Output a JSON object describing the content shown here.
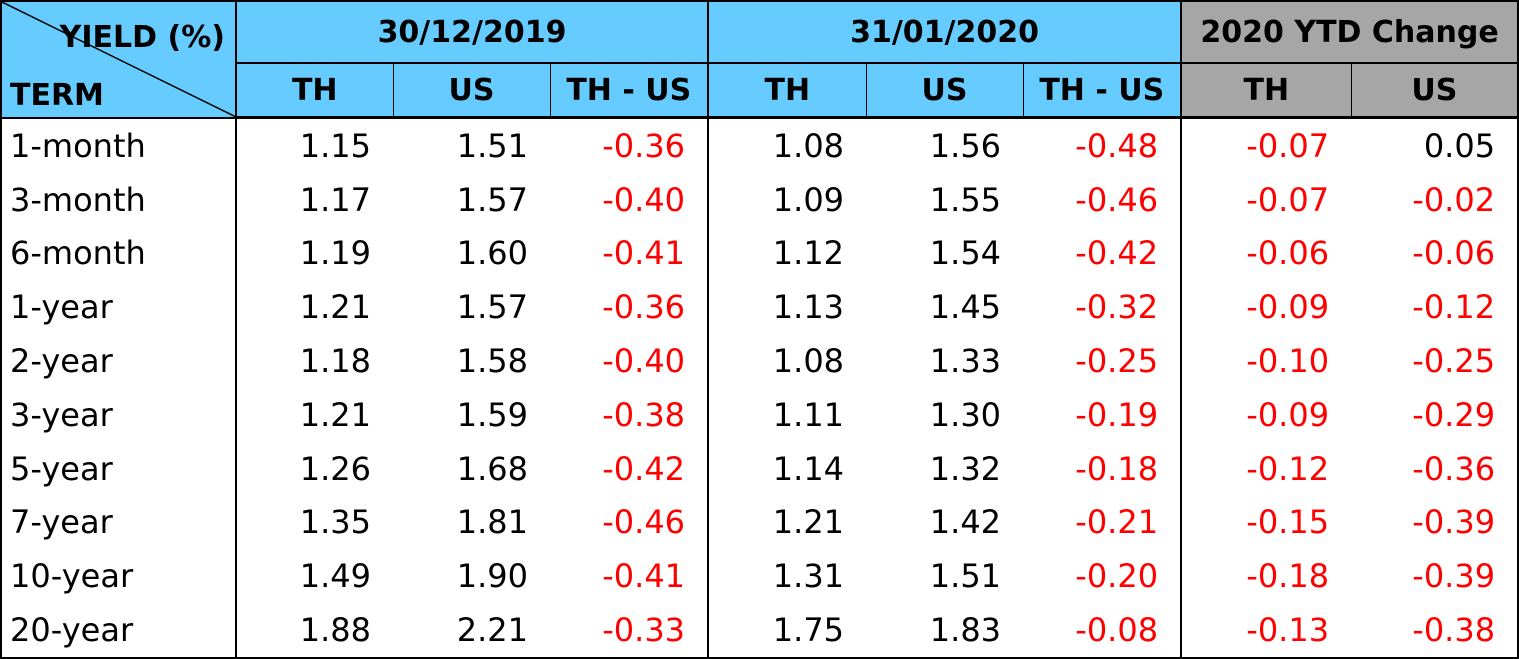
{
  "table": {
    "corner_top": "YIELD (%)",
    "corner_bottom": "TERM",
    "groups": [
      {
        "label": "30/12/2019"
      },
      {
        "label": "31/01/2020"
      },
      {
        "label": "2020 YTD Change"
      }
    ],
    "subheaders": [
      "TH",
      "US",
      "TH - US",
      "TH",
      "US",
      "TH - US",
      "TH",
      "US"
    ],
    "colors": {
      "header_blue": "#66ccff",
      "header_gray": "#a6a6a6",
      "negative": "#ff0000"
    },
    "rows": [
      {
        "term": "1-month",
        "values": [
          "1.15",
          "1.51",
          "-0.36",
          "1.08",
          "1.56",
          "-0.48",
          "-0.07",
          "0.05"
        ]
      },
      {
        "term": "3-month",
        "values": [
          "1.17",
          "1.57",
          "-0.40",
          "1.09",
          "1.55",
          "-0.46",
          "-0.07",
          "-0.02"
        ]
      },
      {
        "term": "6-month",
        "values": [
          "1.19",
          "1.60",
          "-0.41",
          "1.12",
          "1.54",
          "-0.42",
          "-0.06",
          "-0.06"
        ]
      },
      {
        "term": "1-year",
        "values": [
          "1.21",
          "1.57",
          "-0.36",
          "1.13",
          "1.45",
          "-0.32",
          "-0.09",
          "-0.12"
        ]
      },
      {
        "term": "2-year",
        "values": [
          "1.18",
          "1.58",
          "-0.40",
          "1.08",
          "1.33",
          "-0.25",
          "-0.10",
          "-0.25"
        ]
      },
      {
        "term": "3-year",
        "values": [
          "1.21",
          "1.59",
          "-0.38",
          "1.11",
          "1.30",
          "-0.19",
          "-0.09",
          "-0.29"
        ]
      },
      {
        "term": "5-year",
        "values": [
          "1.26",
          "1.68",
          "-0.42",
          "1.14",
          "1.32",
          "-0.18",
          "-0.12",
          "-0.36"
        ]
      },
      {
        "term": "7-year",
        "values": [
          "1.35",
          "1.81",
          "-0.46",
          "1.21",
          "1.42",
          "-0.21",
          "-0.15",
          "-0.39"
        ]
      },
      {
        "term": "10-year",
        "values": [
          "1.49",
          "1.90",
          "-0.41",
          "1.31",
          "1.51",
          "-0.20",
          "-0.18",
          "-0.39"
        ]
      },
      {
        "term": "20-year",
        "values": [
          "1.88",
          "2.21",
          "-0.33",
          "1.75",
          "1.83",
          "-0.08",
          "-0.13",
          "-0.38"
        ]
      }
    ]
  }
}
